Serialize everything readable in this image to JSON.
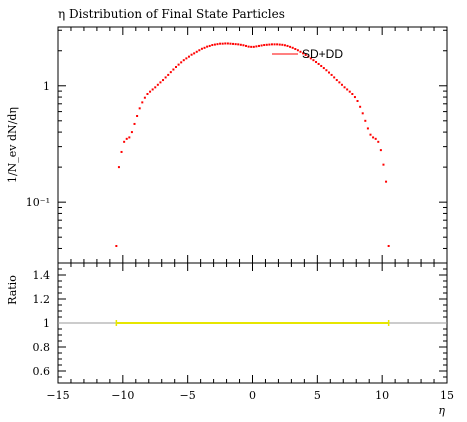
{
  "chart_data": {
    "type": "scatter",
    "title": "η Distribution of Final State Particles",
    "xlabel": "η",
    "ylabel": "1/N_ev dN/dη",
    "xlim": [
      -15,
      15
    ],
    "xticks": [
      -15,
      -10,
      -5,
      0,
      5,
      10,
      15
    ],
    "main": {
      "yscale": "log",
      "ylim": [
        0.03,
        3.2
      ],
      "major_ticks": [
        {
          "value": 1,
          "label": "1"
        },
        {
          "value": 0.1,
          "label": "10⁻¹"
        }
      ],
      "series": [
        {
          "name": "SD+DD",
          "color": "#ff0000",
          "x": [
            -10.5,
            -10.3,
            -10.1,
            -9.9,
            -9.7,
            -9.5,
            -9.3,
            -9.1,
            -8.9,
            -8.7,
            -8.5,
            -8.3,
            -8.1,
            -7.9,
            -7.7,
            -7.5,
            -7.3,
            -7.1,
            -6.9,
            -6.7,
            -6.5,
            -6.3,
            -6.1,
            -5.9,
            -5.7,
            -5.5,
            -5.3,
            -5.1,
            -4.9,
            -4.7,
            -4.5,
            -4.3,
            -4.1,
            -3.9,
            -3.7,
            -3.5,
            -3.3,
            -3.1,
            -2.9,
            -2.7,
            -2.5,
            -2.3,
            -2.1,
            -1.9,
            -1.7,
            -1.5,
            -1.3,
            -1.1,
            -0.9,
            -0.7,
            -0.5,
            -0.3,
            -0.1,
            0.1,
            0.3,
            0.5,
            0.7,
            0.9,
            1.1,
            1.3,
            1.5,
            1.7,
            1.9,
            2.1,
            2.3,
            2.5,
            2.7,
            2.9,
            3.1,
            3.3,
            3.5,
            3.7,
            3.9,
            4.1,
            4.3,
            4.5,
            4.7,
            4.9,
            5.1,
            5.3,
            5.5,
            5.7,
            5.9,
            6.1,
            6.3,
            6.5,
            6.7,
            6.9,
            7.1,
            7.3,
            7.5,
            7.7,
            7.9,
            8.1,
            8.3,
            8.5,
            8.7,
            8.9,
            9.1,
            9.3,
            9.5,
            9.7,
            9.9,
            10.1,
            10.3,
            10.5
          ],
          "y": [
            0.042,
            0.2,
            0.27,
            0.33,
            0.35,
            0.36,
            0.4,
            0.47,
            0.55,
            0.64,
            0.72,
            0.79,
            0.85,
            0.89,
            0.93,
            0.97,
            1.02,
            1.07,
            1.12,
            1.18,
            1.24,
            1.31,
            1.38,
            1.45,
            1.52,
            1.59,
            1.66,
            1.72,
            1.78,
            1.85,
            1.9,
            1.96,
            2.02,
            2.08,
            2.12,
            2.17,
            2.2,
            2.24,
            2.26,
            2.28,
            2.3,
            2.3,
            2.31,
            2.31,
            2.3,
            2.29,
            2.28,
            2.27,
            2.25,
            2.23,
            2.2,
            2.17,
            2.16,
            2.16,
            2.18,
            2.2,
            2.22,
            2.24,
            2.25,
            2.26,
            2.27,
            2.27,
            2.27,
            2.26,
            2.25,
            2.23,
            2.2,
            2.16,
            2.12,
            2.07,
            2.02,
            1.96,
            1.9,
            1.84,
            1.78,
            1.72,
            1.66,
            1.6,
            1.54,
            1.48,
            1.42,
            1.36,
            1.3,
            1.24,
            1.18,
            1.12,
            1.07,
            1.02,
            0.97,
            0.93,
            0.89,
            0.85,
            0.8,
            0.74,
            0.66,
            0.58,
            0.5,
            0.43,
            0.38,
            0.36,
            0.35,
            0.33,
            0.28,
            0.21,
            0.15,
            0.042
          ]
        }
      ]
    },
    "ratio": {
      "ylabel": "Ratio",
      "ylim": [
        0.5,
        1.5
      ],
      "yticks": [
        0.6,
        0.8,
        1,
        1.2,
        1.4
      ],
      "ytick_labels": [
        "0.6",
        "0.8",
        "1",
        "1.2",
        "1.4"
      ],
      "reference": 1,
      "band": {
        "x_from": -10.5,
        "x_to": 10.5,
        "value": 1,
        "color": "#e6e600"
      }
    }
  }
}
